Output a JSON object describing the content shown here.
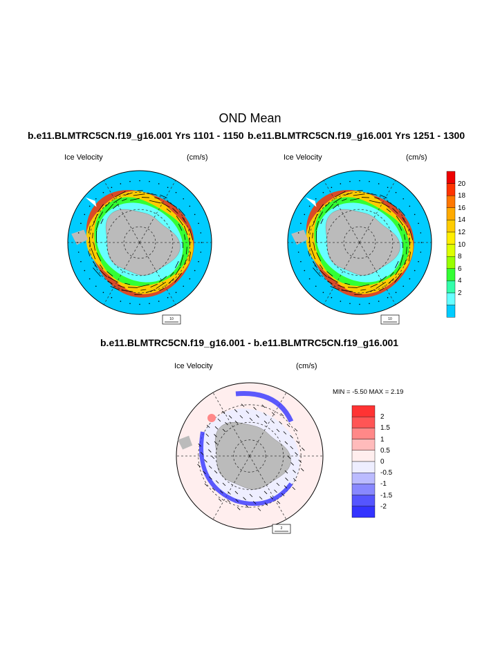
{
  "figure": {
    "title": "OND Mean"
  },
  "panels": [
    {
      "id": "top-left",
      "run_title": "b.e11.BLMTRC5CN.f19_g16.001  Yrs 1101 - 1150",
      "field": "Ice Velocity",
      "units": "(cm/s)",
      "ref_vector": "10"
    },
    {
      "id": "top-right",
      "run_title": "b.e11.BLMTRC5CN.f19_g16.001  Yrs 1251 - 1300",
      "field": "Ice Velocity",
      "units": "(cm/s)",
      "ref_vector": "10"
    },
    {
      "id": "bottom-diff",
      "run_title": "b.e11.BLMTRC5CN.f19_g16.001 - b.e11.BLMTRC5CN.f19_g16.001",
      "field": "Ice Velocity",
      "units": "(cm/s)",
      "ref_vector": "2",
      "min_max_text": "MIN =  -5.50 MAX =   2.19"
    }
  ],
  "colorbar_speed": {
    "labels": [
      "20",
      "18",
      "16",
      "14",
      "12",
      "10",
      "8",
      "6",
      "4",
      "2"
    ],
    "colors": [
      "#ee0000",
      "#ff3300",
      "#ff7700",
      "#ffaa00",
      "#ffcc00",
      "#ffee00",
      "#ddff00",
      "#99ff00",
      "#33ff33",
      "#33ffaa",
      "#66ffff",
      "#00ccff"
    ]
  },
  "colorbar_diff": {
    "labels": [
      "2",
      "1.5",
      "1",
      "0.5",
      "0",
      "-0.5",
      "-1",
      "-1.5",
      "-2"
    ],
    "colors": [
      "#ff3333",
      "#ff5555",
      "#ff8888",
      "#ffbbbb",
      "#ffeeee",
      "#eeeeff",
      "#bbbbff",
      "#8888ff",
      "#5555ff",
      "#3333ff"
    ]
  }
}
